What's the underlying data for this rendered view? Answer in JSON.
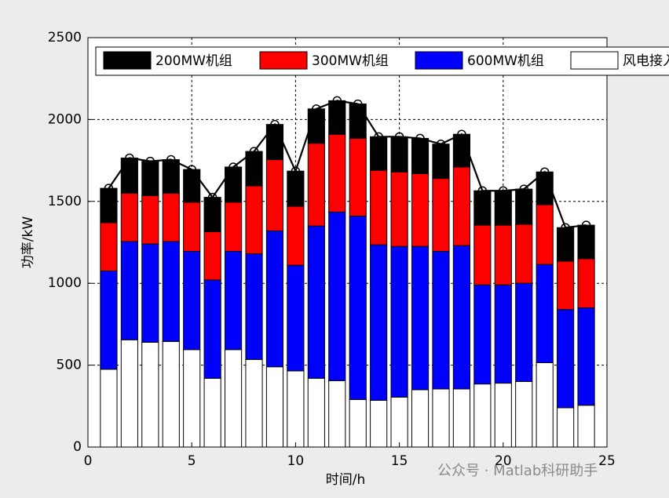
{
  "chart_data": {
    "type": "stacked_bar_line",
    "x": [
      1,
      2,
      3,
      4,
      5,
      6,
      7,
      8,
      9,
      10,
      11,
      12,
      13,
      14,
      15,
      16,
      17,
      18,
      19,
      20,
      21,
      22,
      23,
      24
    ],
    "series": [
      {
        "name": "200MW机组",
        "color": "#000000",
        "values": [
          210,
          215,
          210,
          205,
          200,
          210,
          215,
          210,
          215,
          215,
          210,
          205,
          210,
          205,
          215,
          215,
          210,
          200,
          210,
          210,
          215,
          200,
          205,
          205
        ]
      },
      {
        "name": "300MW机组",
        "color": "#ff0000",
        "values": [
          295,
          295,
          295,
          295,
          300,
          295,
          300,
          415,
          435,
          360,
          505,
          475,
          475,
          455,
          455,
          445,
          445,
          480,
          365,
          365,
          360,
          365,
          295,
          300
        ]
      },
      {
        "name": "600MW机组",
        "color": "#0000ff",
        "values": [
          600,
          600,
          600,
          610,
          600,
          600,
          600,
          645,
          830,
          645,
          930,
          1030,
          1120,
          950,
          920,
          875,
          840,
          875,
          605,
          600,
          600,
          600,
          600,
          595
        ]
      },
      {
        "name": "风电接入",
        "color": "#ffffff",
        "values": [
          475,
          655,
          640,
          645,
          595,
          420,
          595,
          535,
          490,
          465,
          420,
          405,
          290,
          285,
          305,
          350,
          355,
          355,
          385,
          390,
          400,
          515,
          240,
          255
        ]
      }
    ],
    "xlim": [
      0,
      25
    ],
    "xticks": [
      0,
      5,
      10,
      15,
      20,
      25
    ],
    "ylim": [
      0,
      2500
    ],
    "yticks": [
      0,
      500,
      1000,
      1500,
      2000,
      2500
    ],
    "xlabel": "时间/h",
    "ylabel": "功率/kW",
    "grid": true,
    "watermark": "公众号 · Matlab科研助手"
  }
}
